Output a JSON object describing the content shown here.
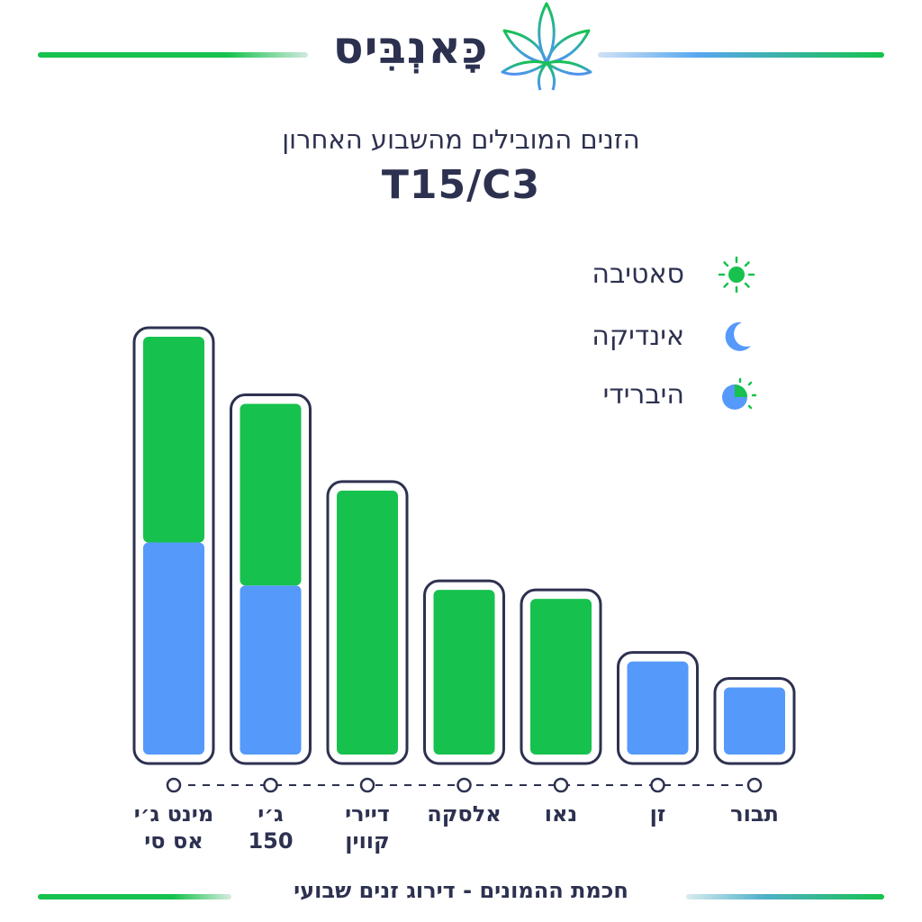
{
  "brand": {
    "name": "כָּאנְבִּיס",
    "logo_icon": "cannabis-leaf-icon"
  },
  "header": {
    "subtitle": "הזנים המובילים מהשבוע האחרון",
    "title": "T15/C3"
  },
  "legend": [
    {
      "label": "סאטיבה",
      "icon": "sun-icon",
      "color": "#16c24d"
    },
    {
      "label": "אינדיקה",
      "icon": "moon-icon",
      "color": "#5599fb"
    },
    {
      "label": "היברידי",
      "icon": "half-sun-moon-icon",
      "color": "#5599fb"
    }
  ],
  "colors": {
    "sativa": "#16c24d",
    "indica": "#5599fb",
    "outline": "#2d3150"
  },
  "chart_data": {
    "type": "bar",
    "stacked": true,
    "categories": [
      [
        "מינט ג׳י",
        "אס סי"
      ],
      [
        "ג׳י",
        "150"
      ],
      [
        "דיירי",
        "קווין"
      ],
      [
        "אלסקה"
      ],
      [
        "נאו"
      ],
      [
        "זן"
      ],
      [
        "תבור"
      ]
    ],
    "series": [
      {
        "name": "אינדיקה",
        "values": [
          237,
          189,
          0,
          0,
          0,
          0,
          0
        ]
      },
      {
        "name": "סאטיבה",
        "values": [
          230,
          203,
          295,
          184,
          174,
          0,
          0
        ]
      },
      {
        "name": "היברידי",
        "values": [
          0,
          0,
          0,
          0,
          0,
          104,
          75
        ]
      }
    ],
    "ylim": [
      0,
      470
    ],
    "grid": false,
    "legend_position": "top-right"
  },
  "footer": {
    "text": "חכמת ההמונים - דירוג זנים שבועי"
  }
}
